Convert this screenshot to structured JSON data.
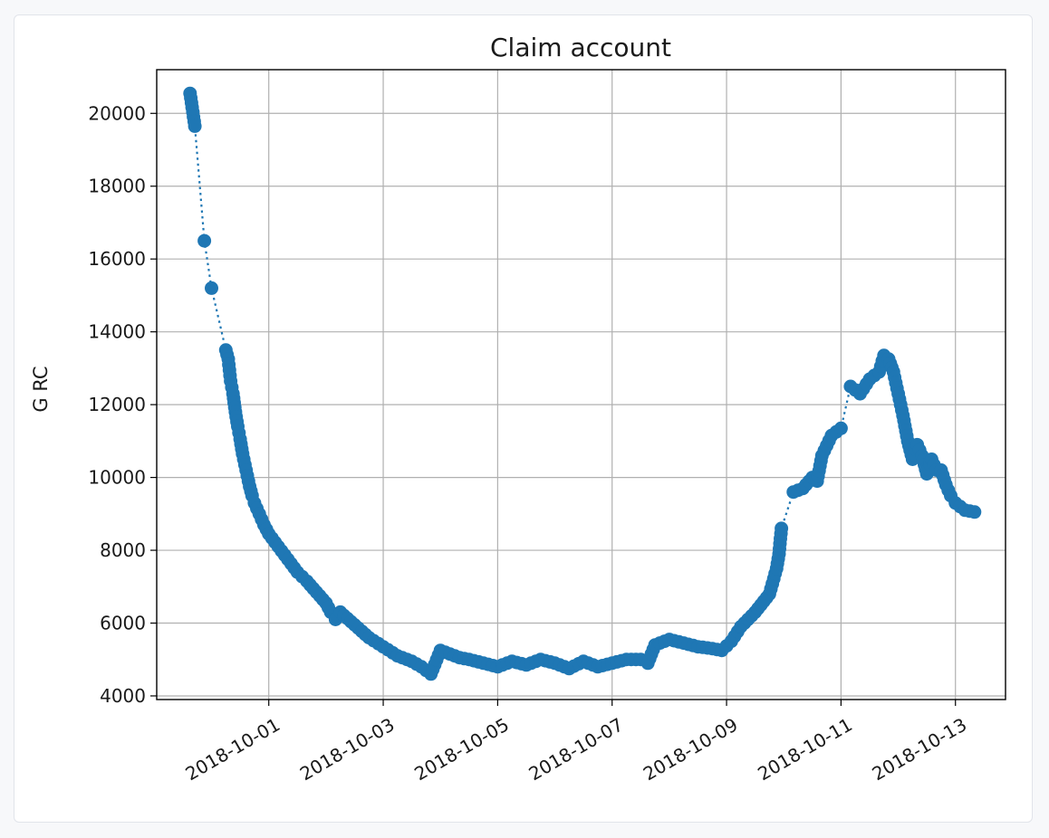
{
  "chart_data": {
    "type": "line",
    "title": "Claim account",
    "xlabel": "",
    "ylabel": "G RC",
    "x_kind": "date",
    "xlim": [
      "2018-09-29T01:00",
      "2018-10-13T21:00"
    ],
    "ylim": [
      3900,
      21200
    ],
    "grid": true,
    "line_style": "dotted",
    "marker": "circle",
    "color": "#1f77b4",
    "x_ticks": [
      "2018-10-01",
      "2018-10-03",
      "2018-10-05",
      "2018-10-07",
      "2018-10-09",
      "2018-10-11",
      "2018-10-13"
    ],
    "y_ticks": [
      4000,
      6000,
      8000,
      10000,
      12000,
      14000,
      16000,
      18000,
      20000
    ],
    "series": [
      {
        "x": [
          "2018-09-29T15:00",
          "2018-09-29T17:00",
          "2018-09-29T21:00",
          "2018-09-30T00:00",
          "2018-09-30T06:00",
          "2018-09-30T07:00",
          "2018-09-30T08:00",
          "2018-09-30T09:00",
          "2018-09-30T10:00",
          "2018-09-30T11:00",
          "2018-09-30T12:00",
          "2018-09-30T13:00",
          "2018-09-30T14:00",
          "2018-09-30T15:00",
          "2018-09-30T16:00",
          "2018-09-30T17:00",
          "2018-09-30T18:00",
          "2018-09-30T20:00",
          "2018-09-30T22:00",
          "2018-10-01T00:00",
          "2018-10-01T04:00",
          "2018-10-01T08:00",
          "2018-10-01T12:00",
          "2018-10-01T16:00",
          "2018-10-01T20:00",
          "2018-10-02T00:00",
          "2018-10-02T02:00",
          "2018-10-02T04:00",
          "2018-10-02T06:00",
          "2018-10-02T12:00",
          "2018-10-02T18:00",
          "2018-10-03T00:00",
          "2018-10-03T06:00",
          "2018-10-03T12:00",
          "2018-10-03T16:00",
          "2018-10-03T18:00",
          "2018-10-03T20:00",
          "2018-10-04T00:00",
          "2018-10-04T04:00",
          "2018-10-04T08:00",
          "2018-10-04T12:00",
          "2018-10-04T18:00",
          "2018-10-05T00:00",
          "2018-10-05T06:00",
          "2018-10-05T12:00",
          "2018-10-05T18:00",
          "2018-10-06T00:00",
          "2018-10-06T06:00",
          "2018-10-06T12:00",
          "2018-10-06T18:00",
          "2018-10-07T00:00",
          "2018-10-07T06:00",
          "2018-10-07T12:00",
          "2018-10-07T15:00",
          "2018-10-07T18:00",
          "2018-10-08T00:00",
          "2018-10-08T06:00",
          "2018-10-08T12:00",
          "2018-10-08T18:00",
          "2018-10-08T22:00",
          "2018-10-09T02:00",
          "2018-10-09T06:00",
          "2018-10-09T12:00",
          "2018-10-09T18:00",
          "2018-10-09T21:00",
          "2018-10-09T22:00",
          "2018-10-09T23:00",
          "2018-10-10T04:00",
          "2018-10-10T08:00",
          "2018-10-10T12:00",
          "2018-10-10T14:00",
          "2018-10-10T16:00",
          "2018-10-10T20:00",
          "2018-10-11T00:00",
          "2018-10-11T04:00",
          "2018-10-11T08:00",
          "2018-10-11T12:00",
          "2018-10-11T16:00",
          "2018-10-11T18:00",
          "2018-10-11T20:00",
          "2018-10-11T22:00",
          "2018-10-12T00:00",
          "2018-10-12T02:00",
          "2018-10-12T04:00",
          "2018-10-12T06:00",
          "2018-10-12T08:00",
          "2018-10-12T10:00",
          "2018-10-12T12:00",
          "2018-10-12T14:00",
          "2018-10-12T16:00",
          "2018-10-12T18:00",
          "2018-10-12T20:00",
          "2018-10-12T22:00",
          "2018-10-13T00:00",
          "2018-10-13T04:00",
          "2018-10-13T08:00"
        ],
        "y": [
          20550,
          19650,
          16500,
          15200,
          13500,
          13250,
          12650,
          12300,
          11800,
          11400,
          11050,
          10650,
          10350,
          10050,
          9750,
          9500,
          9300,
          9000,
          8700,
          8450,
          8100,
          7750,
          7400,
          7150,
          6850,
          6550,
          6300,
          6100,
          6300,
          5950,
          5600,
          5350,
          5100,
          4950,
          4800,
          4700,
          4600,
          5250,
          5150,
          5050,
          5000,
          4900,
          4800,
          4950,
          4850,
          5000,
          4900,
          4750,
          4950,
          4800,
          4900,
          5000,
          5000,
          4900,
          5400,
          5550,
          5450,
          5350,
          5300,
          5250,
          5500,
          5900,
          6300,
          6800,
          7500,
          7900,
          8600,
          9600,
          9700,
          10000,
          9900,
          10600,
          11150,
          11350,
          12500,
          12300,
          12700,
          12900,
          13350,
          13250,
          12900,
          12300,
          11700,
          11000,
          10500,
          10900,
          10600,
          10100,
          10500,
          10200,
          10200,
          9800,
          9500,
          9300,
          9100,
          9050
        ]
      }
    ]
  }
}
